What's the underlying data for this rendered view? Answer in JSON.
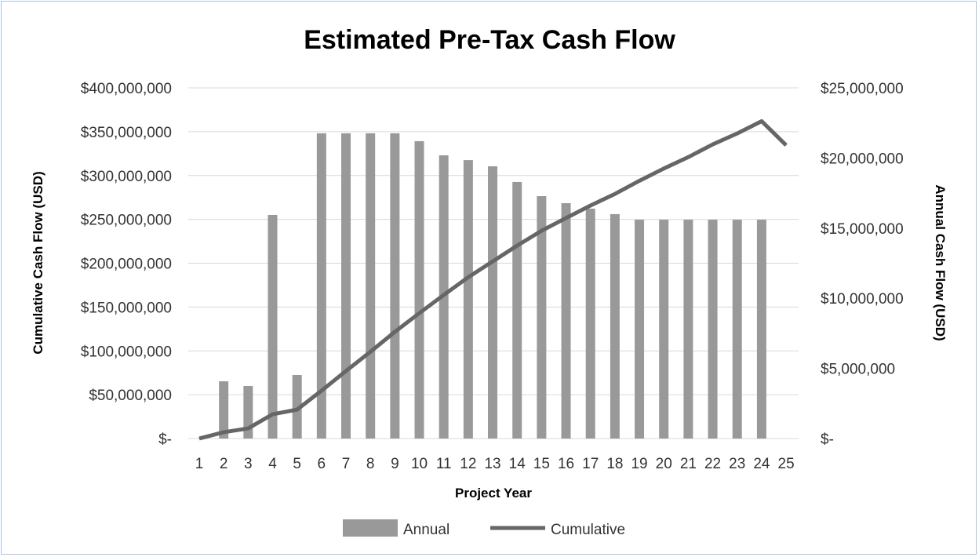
{
  "chart_data": {
    "type": "bar+line",
    "title": "Estimated Pre-Tax Cash Flow",
    "xlabel": "Project Year",
    "ylabel_left": "Cumulative Cash Flow (USD)",
    "ylabel_right": "Annual Cash Flow (USD)",
    "categories": [
      "1",
      "2",
      "3",
      "4",
      "5",
      "6",
      "7",
      "8",
      "9",
      "10",
      "11",
      "12",
      "13",
      "14",
      "15",
      "16",
      "17",
      "18",
      "19",
      "20",
      "21",
      "22",
      "23",
      "24",
      "25"
    ],
    "ylim_left": [
      0,
      400000000
    ],
    "ylim_right": [
      0,
      25000000
    ],
    "left_ticks": [
      "$-",
      "$50,000,000",
      "$100,000,000",
      "$150,000,000",
      "$200,000,000",
      "$250,000,000",
      "$300,000,000",
      "$350,000,000",
      "$400,000,000"
    ],
    "right_ticks": [
      "$-",
      "$5,000,000",
      "$10,000,000",
      "$15,000,000",
      "$20,000,000",
      "$25,000,000"
    ],
    "grid": true,
    "legend": "bottom",
    "series": [
      {
        "name": "Annual",
        "type": "bar",
        "axis": "right",
        "color": "#999999",
        "values": [
          0,
          4080000,
          3750000,
          15940000,
          4530000,
          21760000,
          21760000,
          21760000,
          21760000,
          21200000,
          20190000,
          19850000,
          19410000,
          18290000,
          17280000,
          16780000,
          16390000,
          16000000,
          15600000,
          15600000,
          15600000,
          15600000,
          15600000,
          15600000,
          0
        ]
      },
      {
        "name": "Cumulative",
        "type": "line",
        "axis": "left",
        "color": "#666666",
        "values": [
          0,
          7200000,
          11600000,
          27700000,
          33000000,
          54600000,
          77000000,
          99000000,
          121700000,
          143000000,
          163800000,
          184000000,
          202000000,
          220000000,
          237000000,
          251500000,
          265800000,
          279000000,
          294000000,
          308000000,
          321000000,
          335500000,
          348000000,
          362000000,
          334600000
        ]
      }
    ]
  }
}
